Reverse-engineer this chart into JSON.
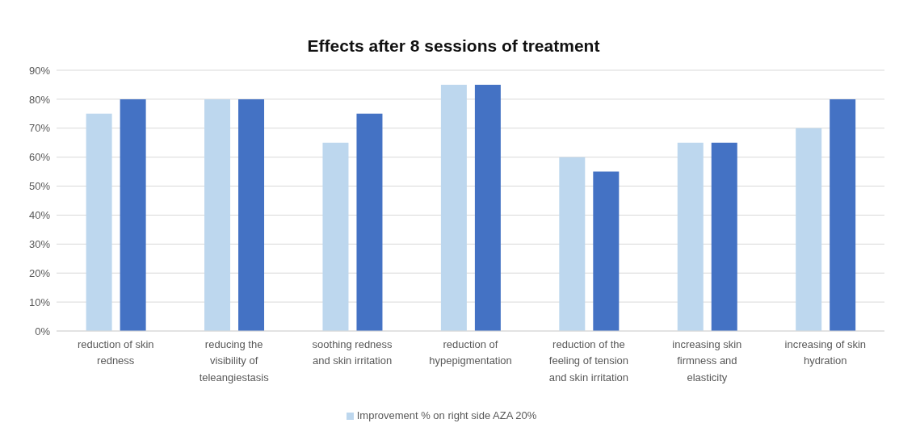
{
  "chart_data": {
    "type": "bar",
    "title": "Effects after 8 sessions of treatment",
    "categories": [
      "reduction of skin redness",
      "reducing the visibility of teleangiestasis",
      "soothing redness and skin irritation",
      "reduction of hypepigmentation",
      "reduction of the feeling of tension and skin irritation",
      "increasing skin firmness and elasticity",
      "increasing of skin hydration"
    ],
    "series": [
      {
        "name": "Improvement % on right side AZA 20%",
        "color": "#bdd7ee",
        "values": [
          75,
          80,
          65,
          85,
          60,
          65,
          70
        ]
      },
      {
        "color": "#4472c4",
        "values": [
          80,
          80,
          75,
          85,
          55,
          65,
          80
        ]
      }
    ],
    "ylim": [
      0,
      90
    ],
    "yticks": [
      {
        "value": 0,
        "label": "0%"
      },
      {
        "value": 10,
        "label": "10%"
      },
      {
        "value": 20,
        "label": "20%"
      },
      {
        "value": 30,
        "label": "30%"
      },
      {
        "value": 40,
        "label": "40%"
      },
      {
        "value": 50,
        "label": "50%"
      },
      {
        "value": 60,
        "label": "60%"
      },
      {
        "value": 70,
        "label": "70%"
      },
      {
        "value": 80,
        "label": "80%"
      },
      {
        "value": 90,
        "label": "90%"
      }
    ],
    "grid": "y",
    "legend": "bottom"
  }
}
